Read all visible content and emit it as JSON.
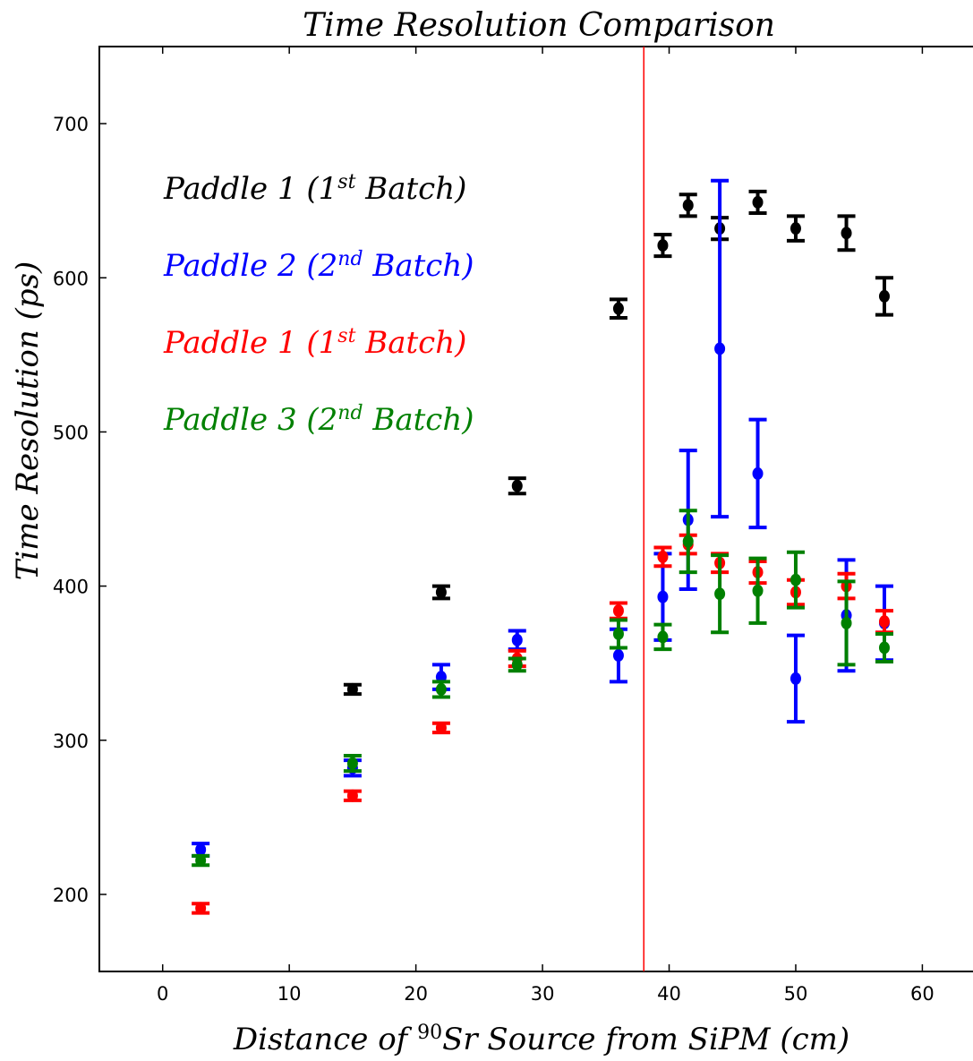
{
  "chart_data": {
    "type": "scatter",
    "title": "Time Resolution Comparison",
    "xlabel": "Distance of 90Sr Source from SiPM (cm)",
    "ylabel": "Time Resolution (ps)",
    "xlim": [
      -5,
      64
    ],
    "ylim": [
      150,
      750
    ],
    "xticks": [
      0,
      10,
      20,
      30,
      40,
      50,
      60
    ],
    "yticks": [
      200,
      300,
      400,
      500,
      600,
      700
    ],
    "grid": false,
    "legend_placement": "upper-left",
    "vline": {
      "x": 38,
      "color": "#ff0000"
    },
    "series": [
      {
        "name": "Paddle 1 (1st Batch)",
        "color": "#000000",
        "x": [
          15,
          22,
          28,
          36,
          39.5,
          41.5,
          44,
          47,
          50,
          54,
          57
        ],
        "y": [
          333,
          396,
          465,
          580,
          621,
          647,
          632,
          649,
          632,
          629,
          588
        ],
        "yerr": [
          3,
          4,
          5,
          6,
          7,
          7,
          7,
          7,
          8,
          11,
          12
        ]
      },
      {
        "name": "Paddle 2 (2nd Batch)",
        "color": "#0000ff",
        "x": [
          3,
          15,
          22,
          28,
          36,
          39.5,
          41.5,
          44,
          47,
          50,
          54,
          57
        ],
        "y": [
          229,
          282,
          341,
          365,
          355,
          393,
          443,
          554,
          473,
          340,
          381,
          376
        ],
        "yerr": [
          4,
          5,
          8,
          6,
          17,
          28,
          45,
          109,
          35,
          28,
          36,
          24
        ]
      },
      {
        "name": "Paddle 1 (1st Batch)",
        "color": "#ff0000",
        "x": [
          3,
          15,
          22,
          28,
          36,
          39.5,
          41.5,
          44,
          47,
          50,
          54,
          57
        ],
        "y": [
          191,
          264,
          308,
          353,
          384,
          419,
          427,
          415,
          409,
          396,
          400,
          377
        ],
        "yerr": [
          3,
          3,
          3,
          5,
          5,
          6,
          6,
          6,
          7,
          8,
          8,
          7
        ]
      },
      {
        "name": "Paddle 3 (2nd Batch)",
        "color": "#008000",
        "x": [
          3,
          15,
          22,
          28,
          36,
          39.5,
          41.5,
          44,
          47,
          50,
          54,
          57
        ],
        "y": [
          222,
          285,
          333,
          349,
          369,
          367,
          429,
          395,
          397,
          404,
          376,
          360
        ],
        "yerr": [
          3,
          5,
          5,
          4,
          9,
          8,
          20,
          25,
          21,
          18,
          27,
          9
        ]
      }
    ]
  },
  "legend_rich": [
    {
      "prefix": "Paddle 1 (1",
      "sup": "st",
      "suffix": " Batch)"
    },
    {
      "prefix": "Paddle 2 (2",
      "sup": "nd",
      "suffix": " Batch)"
    },
    {
      "prefix": "Paddle 1 (1",
      "sup": "st",
      "suffix": " Batch)"
    },
    {
      "prefix": "Paddle 3 (2",
      "sup": "nd",
      "suffix": " Batch)"
    }
  ],
  "xlabel_rich": {
    "prefix": "Distance of ",
    "sup": "90",
    "suffix": "Sr Source from SiPM (cm)"
  }
}
